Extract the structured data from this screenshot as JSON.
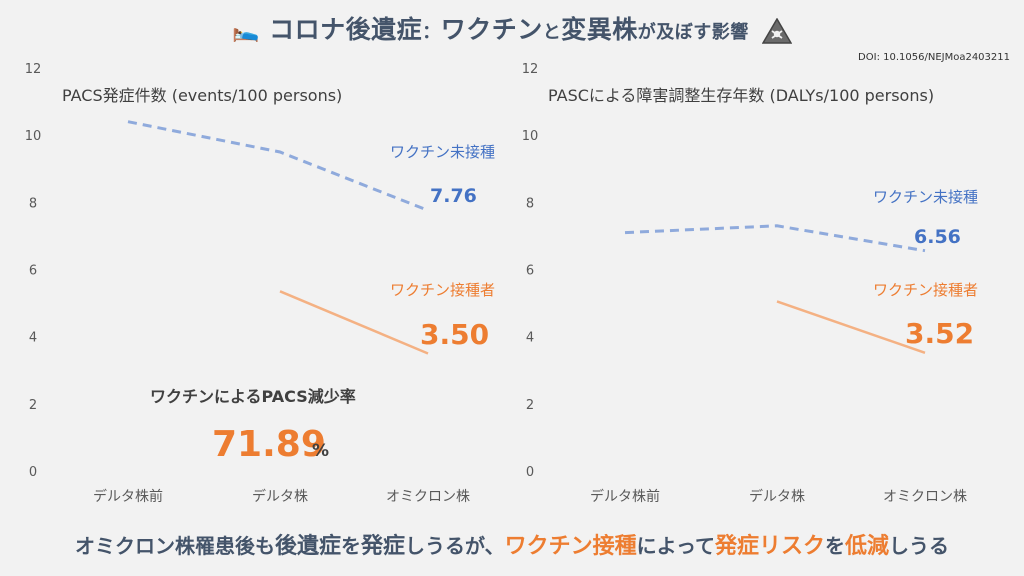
{
  "title": {
    "bed_icon": "bed-icon",
    "main": "コロナ後遺症",
    "sep": "：",
    "part1": "ワクチン",
    "to": "と",
    "part2": "変異株",
    "rest": "が及ぼす影響",
    "warning_icon": "biohazard-warning-icon"
  },
  "doi": "DOI: 10.1056/NEJMoa2403211",
  "colors": {
    "unvax": "#4472c4",
    "unvax_line": "#8faadc",
    "vax": "#ed7d31",
    "vax_line": "#f4b183",
    "text": "#44546a"
  },
  "chart_data": [
    {
      "type": "line",
      "title": "PACS発症件数 (events/100 persons)",
      "categories": [
        "デルタ株前",
        "デルタ株",
        "オミクロン株"
      ],
      "ylim": [
        0,
        12
      ],
      "yticks": [
        "0",
        "2",
        "4",
        "6",
        "8",
        "10",
        "12"
      ],
      "series": [
        {
          "name": "ワクチン未接種",
          "values": [
            10.4,
            9.5,
            7.76
          ],
          "style": "dashed",
          "end_label": "7.76"
        },
        {
          "name": "ワクチン接種者",
          "values": [
            null,
            5.35,
            3.5
          ],
          "style": "solid",
          "end_label": "3.50"
        }
      ],
      "annotation": {
        "label": "ワクチンによるPACS減少率",
        "value": "71.89",
        "unit": "%"
      }
    },
    {
      "type": "line",
      "title": "PASCによる障害調整生存年数 (DALYs/100 persons)",
      "categories": [
        "デルタ株前",
        "デルタ株",
        "オミクロン株"
      ],
      "ylim": [
        0,
        12
      ],
      "yticks": [
        "0",
        "2",
        "4",
        "6",
        "8",
        "10",
        "12"
      ],
      "series": [
        {
          "name": "ワクチン未接種",
          "values": [
            7.1,
            7.3,
            6.56
          ],
          "style": "dashed",
          "end_label": "6.56"
        },
        {
          "name": "ワクチン接種者",
          "values": [
            null,
            5.05,
            3.52
          ],
          "style": "solid",
          "end_label": "3.52"
        }
      ]
    }
  ],
  "bottom": {
    "p1": "オミクロン株罹患後も",
    "p2": "後遺症",
    "p3": "を",
    "p4": "発症",
    "p5": "しうるが、",
    "p6": "ワクチン接種",
    "p7": "によって",
    "p8": "発症リスク",
    "p9": "を",
    "p10": "低減",
    "p11": "しうる"
  }
}
